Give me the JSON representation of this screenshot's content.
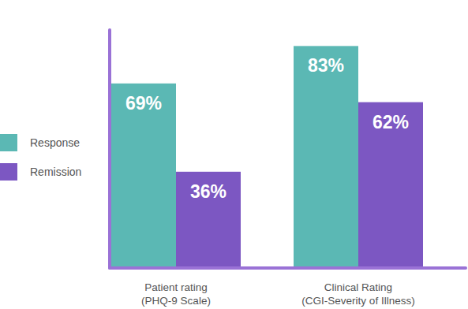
{
  "chart_data": {
    "type": "bar",
    "categories": [
      "Patient rating\n(PHQ-9 Scale)",
      "Clinical Rating\n(CGI-Severity of Illness)"
    ],
    "series": [
      {
        "name": "Response",
        "color": "#5bb8b4",
        "values": [
          69,
          83
        ],
        "value_labels": [
          "69%",
          "83%"
        ]
      },
      {
        "name": "Remission",
        "color": "#7c57c2",
        "values": [
          36,
          62
        ],
        "value_labels": [
          "36%",
          "62%"
        ]
      }
    ],
    "ylim": [
      0,
      89
    ],
    "data_labels": true,
    "tick_labels": false,
    "grid": false,
    "legend": "left"
  }
}
